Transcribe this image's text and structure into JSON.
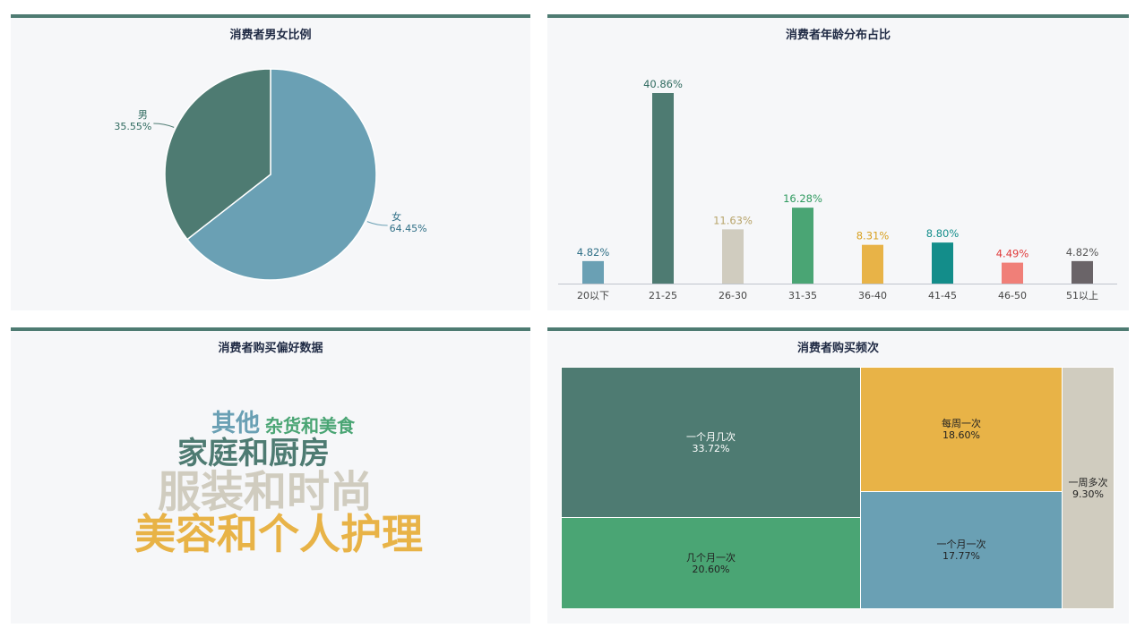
{
  "panels": {
    "gender_title": "消费者男女比例",
    "age_title": "消费者年龄分布占比",
    "preference_title": "消费者购买偏好数据",
    "frequency_title": "消费者购买频次"
  },
  "chart_data": [
    {
      "type": "pie",
      "title": "消费者男女比例",
      "slices": [
        {
          "label": "女",
          "value": 64.45,
          "value_label": "64.45%",
          "color": "#6aa0b4"
        },
        {
          "label": "男",
          "value": 35.55,
          "value_label": "35.55%",
          "color": "#4e7b72"
        }
      ]
    },
    {
      "type": "bar",
      "title": "消费者年龄分布占比",
      "categories": [
        "20以下",
        "21-25",
        "26-30",
        "31-35",
        "36-40",
        "41-45",
        "46-50",
        "51以上"
      ],
      "values": [
        4.82,
        40.86,
        11.63,
        16.28,
        8.31,
        8.8,
        4.49,
        4.82
      ],
      "value_labels": [
        "4.82%",
        "40.86%",
        "11.63%",
        "16.28%",
        "8.31%",
        "8.80%",
        "4.49%",
        "4.82%"
      ],
      "colors": [
        "#6aa0b4",
        "#4e7b72",
        "#d0ccbf",
        "#4aa574",
        "#e8b347",
        "#138d8a",
        "#f07f78",
        "#6a6468"
      ],
      "label_colors": [
        "#2f6f86",
        "#2f6a5f",
        "#b8a46a",
        "#2f9a5f",
        "#d8a020",
        "#138d8a",
        "#e03a3a",
        "#555555"
      ],
      "ylim": [
        0,
        42
      ]
    },
    {
      "type": "table",
      "title": "消费者购买偏好数据",
      "words": [
        {
          "text": "其他",
          "color": "#6aa0b4"
        },
        {
          "text": "杂货和美食",
          "color": "#4aa574"
        },
        {
          "text": "家庭和厨房",
          "color": "#4e7b72"
        },
        {
          "text": "服装和时尚",
          "color": "#d0ccbf"
        },
        {
          "text": "美容和个人护理",
          "color": "#e8b347"
        }
      ]
    },
    {
      "type": "table",
      "title": "消费者购买频次",
      "cells": [
        {
          "label": "一个月几次",
          "value": 33.72,
          "value_label": "33.72%",
          "color": "#4e7b72"
        },
        {
          "label": "几个月一次",
          "value": 20.6,
          "value_label": "20.60%",
          "color": "#4aa574"
        },
        {
          "label": "每周一次",
          "value": 18.6,
          "value_label": "18.60%",
          "color": "#e8b347"
        },
        {
          "label": "一个月一次",
          "value": 17.77,
          "value_label": "17.77%",
          "color": "#6aa0b4"
        },
        {
          "label": "一周多次",
          "value": 9.3,
          "value_label": "9.30%",
          "color": "#d0ccbf"
        }
      ]
    }
  ]
}
